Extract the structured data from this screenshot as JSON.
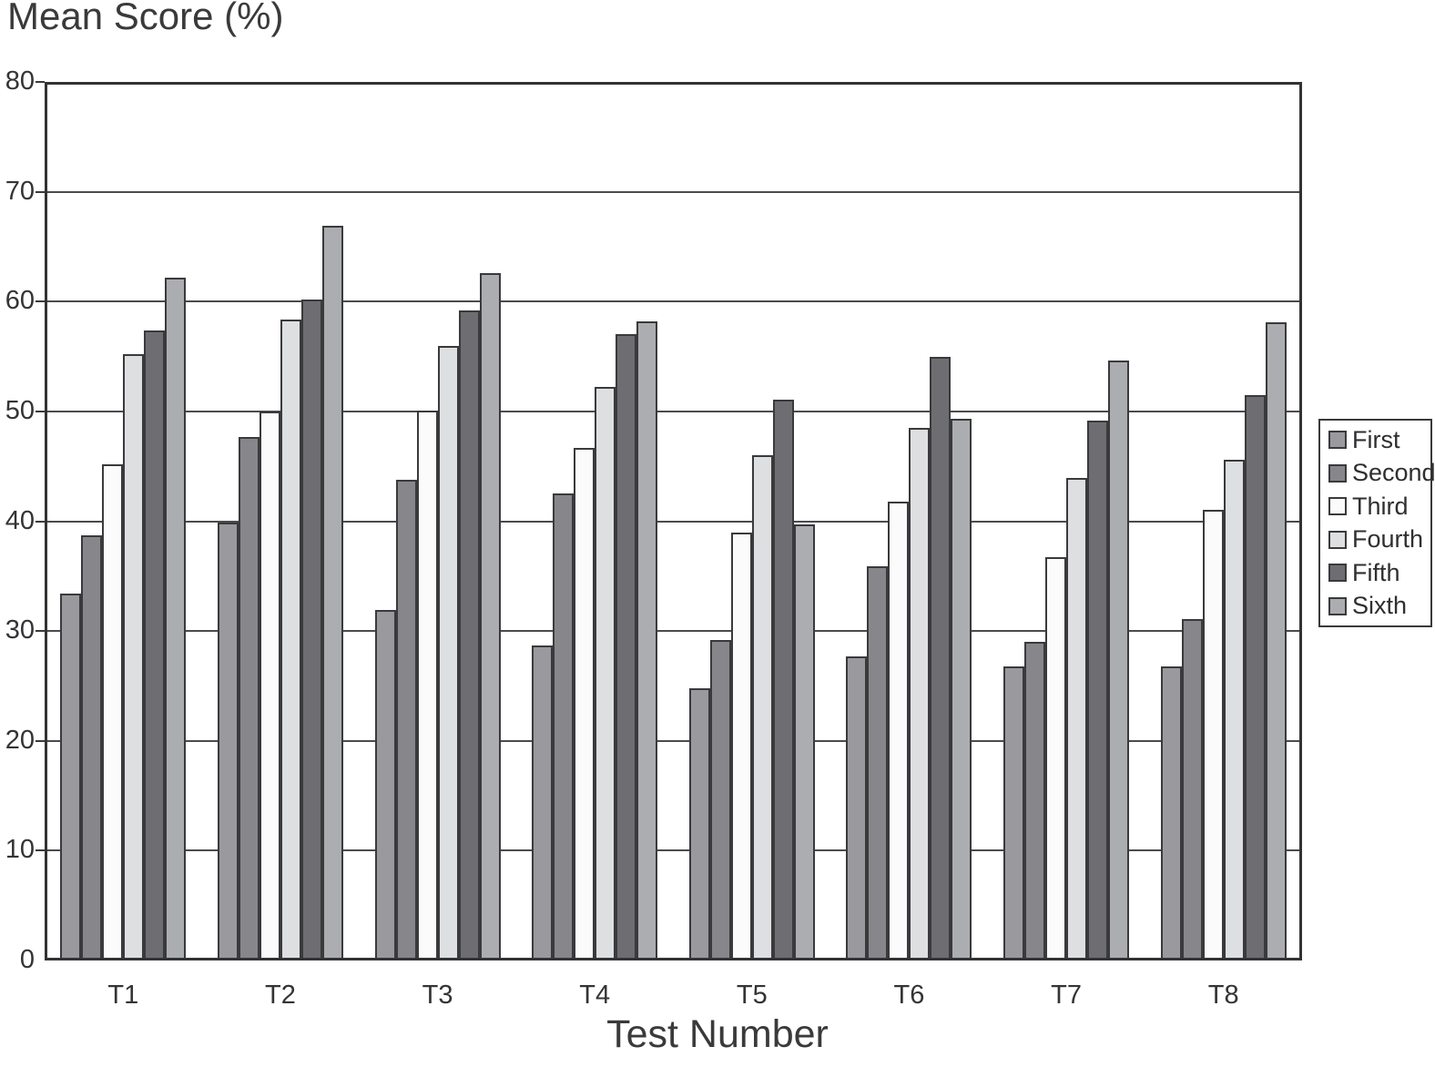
{
  "title": "Mean Score (%)",
  "x_axis_title": "Test Number",
  "colors": {
    "axis": "#333336",
    "gridline": "#4b4b4e",
    "bar_border": "#3a3a3c",
    "text": "#3a3a3a"
  },
  "chart_data": {
    "type": "bar",
    "title": "Mean Score (%)",
    "xlabel": "Test Number",
    "ylabel": "Mean Score (%)",
    "ylim": [
      0,
      80
    ],
    "yticks": [
      0,
      10,
      20,
      30,
      40,
      50,
      60,
      70,
      80
    ],
    "grid": true,
    "legend_position": "right",
    "categories": [
      "T1",
      "T2",
      "T3",
      "T4",
      "T5",
      "T6",
      "T7",
      "T8"
    ],
    "series": [
      {
        "name": "First",
        "color": "#9a9a9e",
        "values": [
          33.4,
          39.9,
          31.9,
          28.7,
          24.8,
          27.7,
          26.8,
          26.8
        ]
      },
      {
        "name": "Second",
        "color": "#87878b",
        "values": [
          38.7,
          47.7,
          43.8,
          42.5,
          29.2,
          35.9,
          29.0,
          31.1
        ]
      },
      {
        "name": "Third",
        "color": "#fbfbfb",
        "values": [
          45.2,
          50.0,
          50.1,
          46.7,
          39.0,
          41.8,
          36.7,
          41.0
        ]
      },
      {
        "name": "Fourth",
        "color": "#dddfe1",
        "values": [
          55.2,
          58.4,
          56.0,
          52.2,
          46.0,
          48.5,
          43.9,
          45.6
        ]
      },
      {
        "name": "Fifth",
        "color": "#6e6e72",
        "values": [
          57.4,
          60.2,
          59.2,
          57.0,
          51.1,
          55.0,
          49.2,
          51.5
        ]
      },
      {
        "name": "Sixth",
        "color": "#acadb1",
        "values": [
          62.2,
          66.9,
          62.6,
          58.2,
          39.7,
          49.3,
          54.6,
          58.1
        ]
      }
    ]
  }
}
